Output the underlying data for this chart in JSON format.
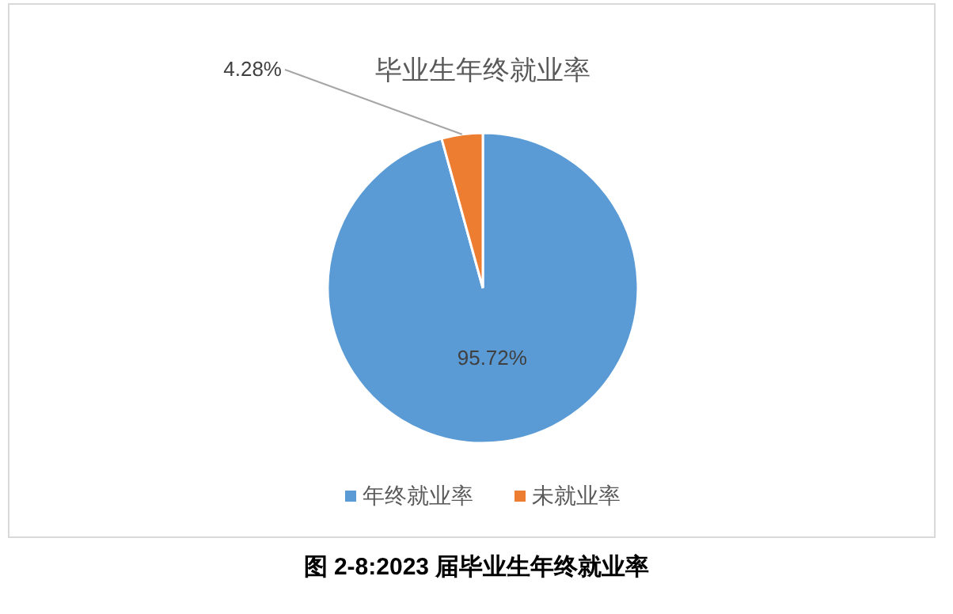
{
  "chart_data": {
    "type": "pie",
    "title": "毕业生年终就业率",
    "categories": [
      "年终就业率",
      "未就业率"
    ],
    "values": [
      95.72,
      4.28
    ],
    "colors": [
      "#5b9bd5",
      "#ed7d31"
    ],
    "value_labels": [
      "95.72%",
      "4.28%"
    ],
    "legend": "bottom",
    "annotations": [
      "图 2-8:2023 届毕业生年终就业率"
    ]
  }
}
